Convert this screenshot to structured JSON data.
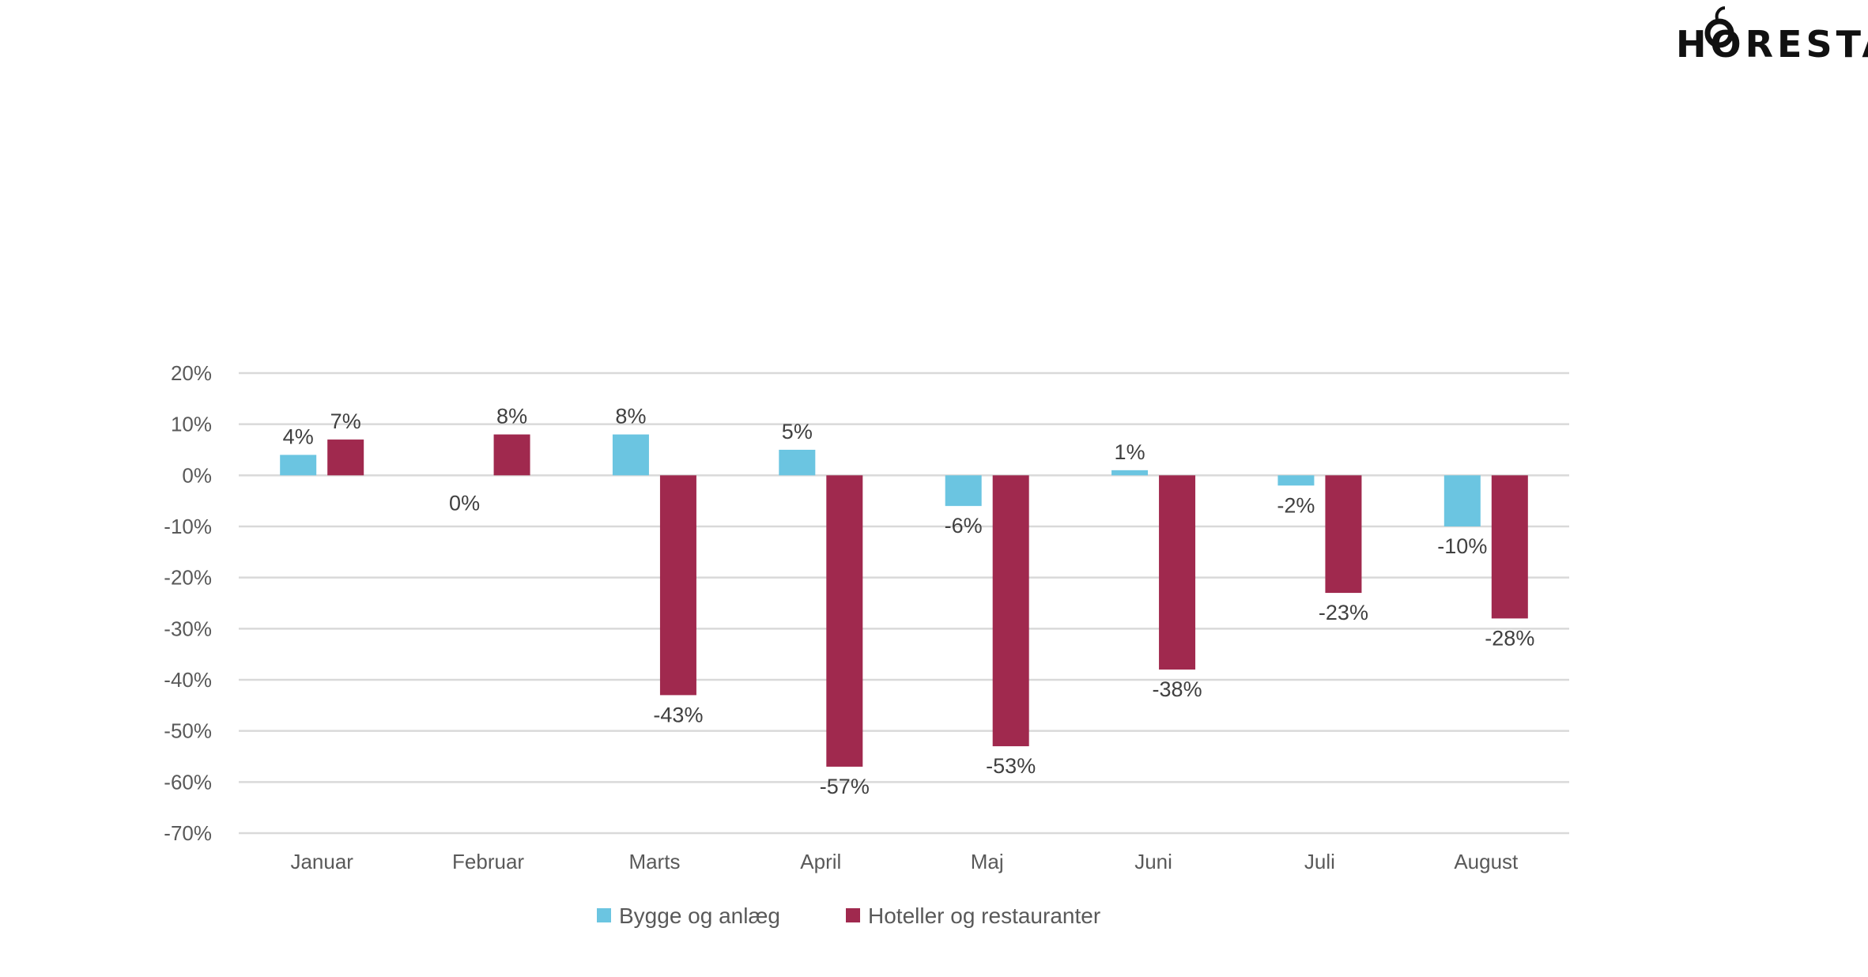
{
  "logo": {
    "text": "HORESTA"
  },
  "chart_data": {
    "type": "bar",
    "categories": [
      "Januar",
      "Februar",
      "Marts",
      "April",
      "Maj",
      "Juni",
      "Juli",
      "August"
    ],
    "series": [
      {
        "name": "Bygge og anlæg",
        "color": "#6BC5E1",
        "values": [
          4,
          0,
          8,
          5,
          -6,
          1,
          -2,
          -10
        ],
        "labels": [
          "4%",
          "0%",
          "8%",
          "5%",
          "-6%",
          "1%",
          "-2%",
          "-10%"
        ]
      },
      {
        "name": "Hoteller og restauranter",
        "color": "#A0294E",
        "values": [
          7,
          8,
          -43,
          -57,
          -53,
          -38,
          -23,
          -28
        ],
        "labels": [
          "7%",
          "8%",
          "-43%",
          "-57%",
          "-53%",
          "-38%",
          "-23%",
          "-28%"
        ]
      }
    ],
    "y_ticks": [
      "20%",
      "10%",
      "0%",
      "-10%",
      "-20%",
      "-30%",
      "-40%",
      "-50%",
      "-60%",
      "-70%"
    ],
    "ylim": [
      -70,
      20
    ],
    "grid": true,
    "legend": "bottom",
    "title": "",
    "xlabel": "",
    "ylabel": ""
  }
}
